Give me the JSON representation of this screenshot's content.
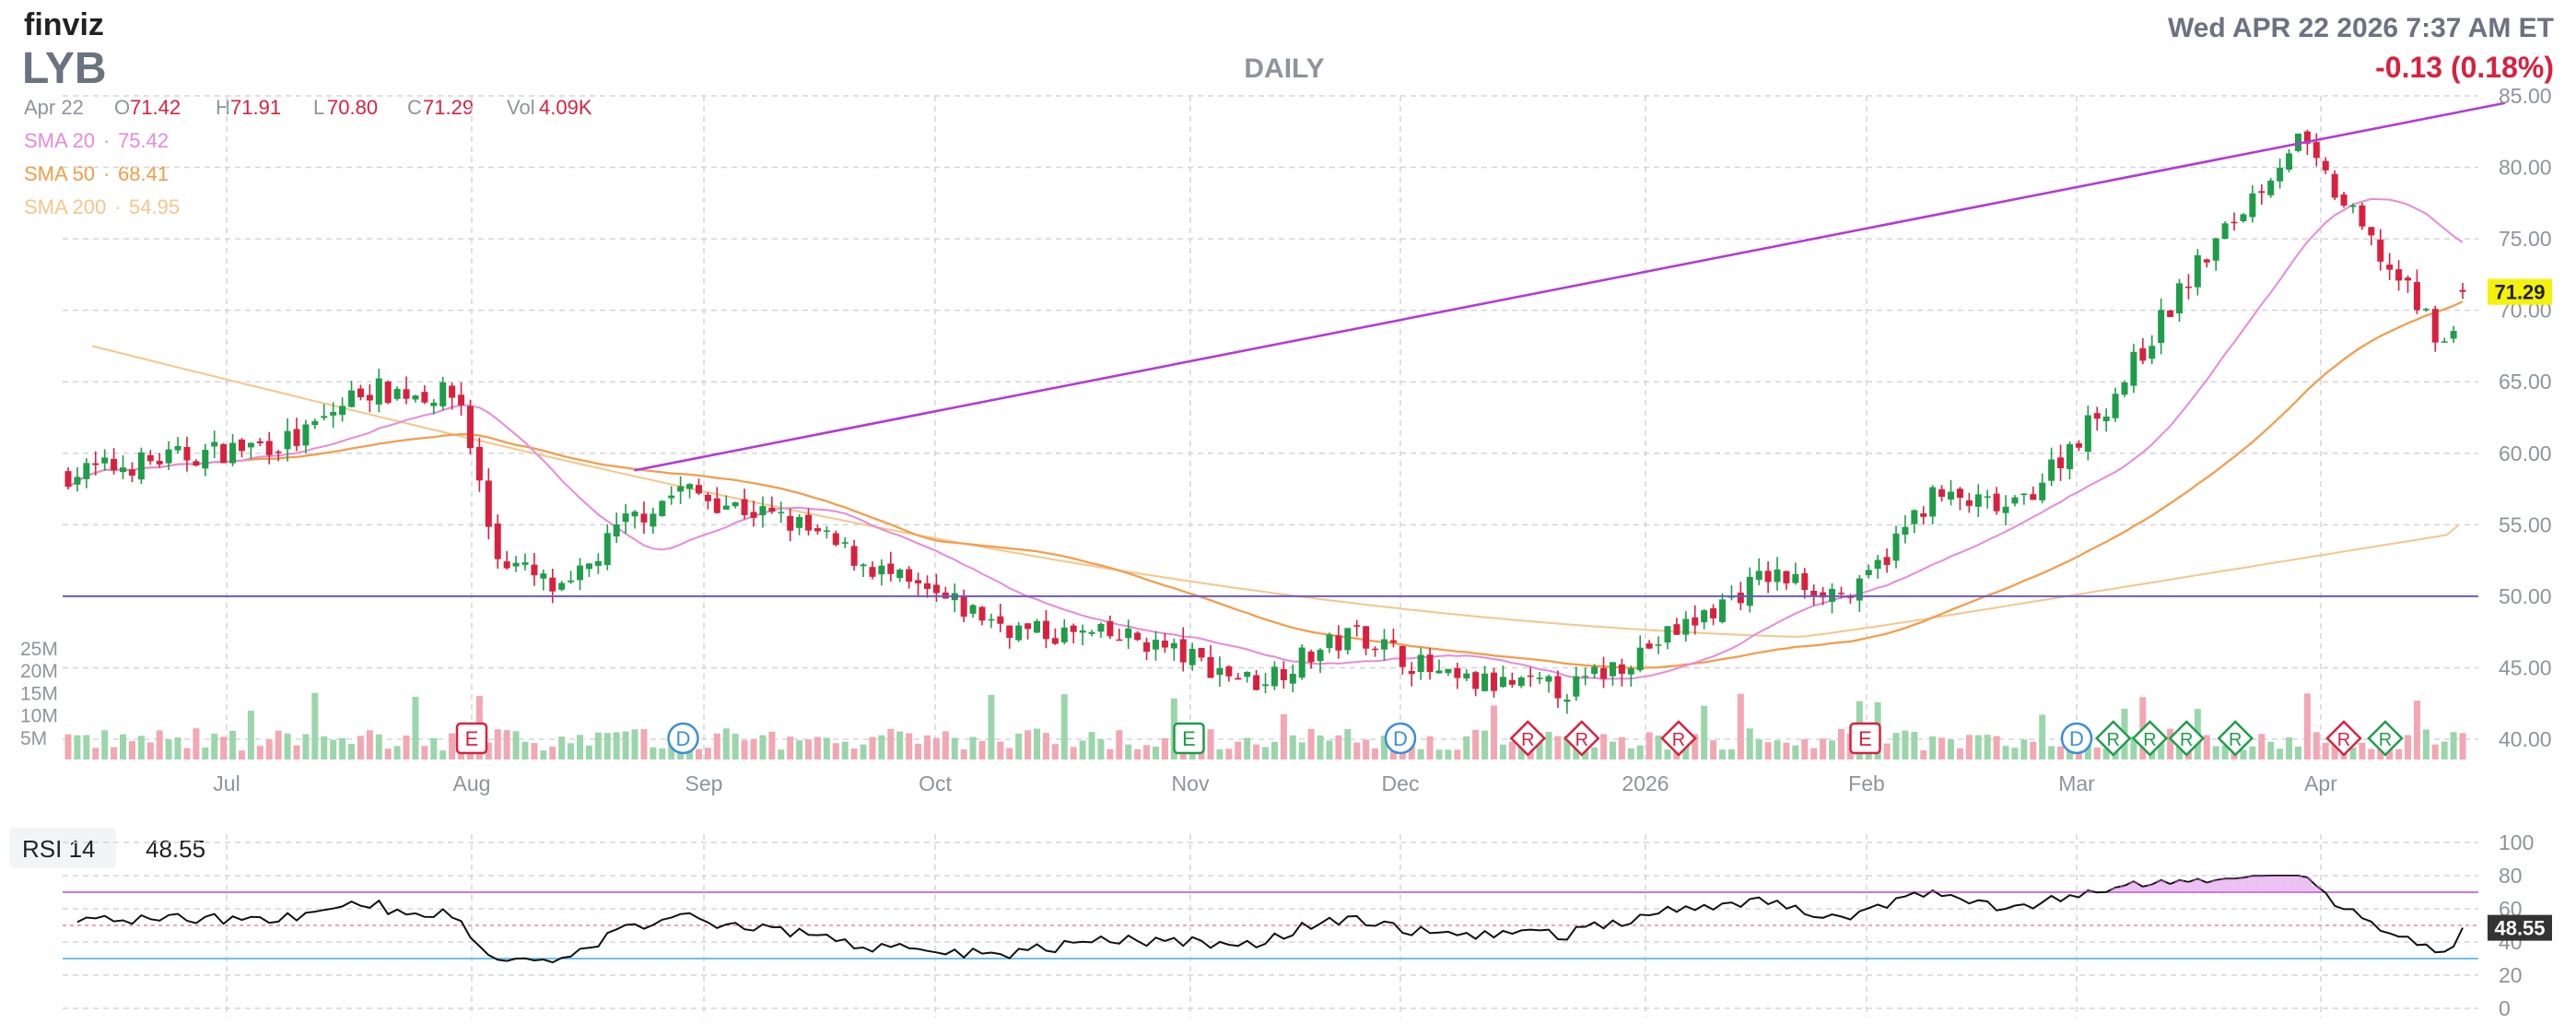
{
  "header": {
    "brand": "finviz",
    "ticker": "LYB",
    "datetime": "Wed APR 22 2026 7:37 AM ET",
    "change": "-0.13 (0.18%)",
    "period": "DAILY"
  },
  "ohlc": {
    "date": "Apr 22",
    "o_label": "O",
    "o": "71.42",
    "h_label": "H",
    "h": "71.91",
    "l_label": "L",
    "l": "70.80",
    "c_label": "C",
    "c": "71.29",
    "vol_label": "Vol",
    "vol": "4.09K"
  },
  "sma": [
    {
      "label": "SMA 20",
      "value": "75.42",
      "color": "#e88ad8"
    },
    {
      "label": "SMA 50",
      "value": "68.41",
      "color": "#f79a45"
    },
    {
      "label": "SMA 200",
      "value": "54.95",
      "color": "#f5c68a"
    }
  ],
  "colors": {
    "up": "#1f9d4a",
    "down": "#d9213f",
    "vol_up": "#9bd6ab",
    "vol_down": "#f2a7b3",
    "trend": "#b53ad6",
    "hline": "#6b58c9",
    "rsi_line": "#111111",
    "rsi_upper": "#d277e0",
    "rsi_lower": "#6ec1ee",
    "grid": "#d2d5dc",
    "axis_text": "#8f939b",
    "price_tag": "#f4f20a"
  },
  "price_axis": {
    "ticks": [
      "85.00",
      "80.00",
      "75.00",
      "70.00",
      "65.00",
      "60.00",
      "55.00",
      "50.00",
      "45.00",
      "40.00"
    ],
    "last_tag": "71.29"
  },
  "volume_axis": {
    "ticks": [
      "25M",
      "20M",
      "15M",
      "10M",
      "5M"
    ]
  },
  "x_axis": {
    "labels": [
      "Jul",
      "Aug",
      "Sep",
      "Oct",
      "Nov",
      "Dec",
      "2026",
      "Feb",
      "Mar",
      "Apr"
    ]
  },
  "events": [
    {
      "type": "E",
      "month": "Aug",
      "offset": 0
    },
    {
      "type": "D",
      "month": "Sep",
      "offset": -0.75
    },
    {
      "type": "E",
      "month": "Nov",
      "offset": -0.05
    },
    {
      "type": "D",
      "month": "Dec",
      "offset": 0
    },
    {
      "type": "R",
      "month": "Dec",
      "offset": 0.52
    },
    {
      "type": "R",
      "month": "Dec",
      "offset": 0.74
    },
    {
      "type": "R",
      "month": "2026",
      "offset": 0.15
    },
    {
      "type": "E",
      "month": "Feb",
      "offset": -0.05
    },
    {
      "type": "D",
      "month": "Mar",
      "offset": 0
    },
    {
      "type": "R",
      "month": "Mar",
      "offset": 0.15
    },
    {
      "type": "R",
      "month": "Mar",
      "offset": 0.3
    },
    {
      "type": "R",
      "month": "Mar",
      "offset": 0.45
    },
    {
      "type": "R",
      "month": "Mar",
      "offset": 0.65
    },
    {
      "type": "R",
      "month": "Apr",
      "offset": 0.1
    },
    {
      "type": "R",
      "month": "Apr",
      "offset": 0.28
    }
  ],
  "rsi": {
    "label": "RSI 14",
    "value": "48.55",
    "ticks": [
      "100",
      "80",
      "60",
      "40",
      "20",
      "0"
    ]
  },
  "chart_data": {
    "type": "candlestick",
    "symbol": "LYB",
    "price_range": [
      40,
      85
    ],
    "volume_unit": "M",
    "months": [
      "Jul",
      "Aug",
      "Sep",
      "Oct",
      "Nov",
      "Dec",
      "2026",
      "Feb",
      "Mar",
      "Apr"
    ],
    "close_anchors": [
      {
        "month": "Jun",
        "pos": 0.0,
        "close": 58.5
      },
      {
        "month": "Jul",
        "pos": 0.3,
        "close": 61.0
      },
      {
        "month": "Jul",
        "pos": 0.55,
        "close": 64.5
      },
      {
        "month": "Jul",
        "pos": 0.95,
        "close": 64.0
      },
      {
        "month": "Aug",
        "pos": 0.1,
        "close": 53.0
      },
      {
        "month": "Aug",
        "pos": 0.4,
        "close": 50.0
      },
      {
        "month": "Aug",
        "pos": 0.65,
        "close": 55.0
      },
      {
        "month": "Aug",
        "pos": 0.9,
        "close": 57.5
      },
      {
        "month": "Sep",
        "pos": 0.4,
        "close": 55.0
      },
      {
        "month": "Sep",
        "pos": 0.9,
        "close": 50.5
      },
      {
        "month": "Oct",
        "pos": 0.35,
        "close": 47.5
      },
      {
        "month": "Oct",
        "pos": 0.8,
        "close": 47.0
      },
      {
        "month": "Nov",
        "pos": 0.3,
        "close": 44.0
      },
      {
        "month": "Nov",
        "pos": 0.8,
        "close": 47.5
      },
      {
        "month": "Dec",
        "pos": 0.2,
        "close": 44.0
      },
      {
        "month": "Dec",
        "pos": 0.7,
        "close": 43.5
      },
      {
        "month": "2026",
        "pos": 0.25,
        "close": 48.5
      },
      {
        "month": "2026",
        "pos": 0.55,
        "close": 51.5
      },
      {
        "month": "2026",
        "pos": 0.95,
        "close": 50.0
      },
      {
        "month": "Feb",
        "pos": 0.3,
        "close": 57.0
      },
      {
        "month": "Feb",
        "pos": 0.7,
        "close": 56.0
      },
      {
        "month": "Mar",
        "pos": 0.15,
        "close": 64.0
      },
      {
        "month": "Mar",
        "pos": 0.45,
        "close": 72.0
      },
      {
        "month": "Mar",
        "pos": 0.9,
        "close": 82.0
      },
      {
        "month": "Apr",
        "pos": 0.25,
        "close": 74.0
      },
      {
        "month": "Apr",
        "pos": 0.55,
        "close": 67.5
      },
      {
        "month": "Apr",
        "pos": 0.75,
        "close": 71.29
      }
    ],
    "volume_range_M": [
      0,
      25
    ],
    "sma20_last": 75.42,
    "sma50_last": 68.41,
    "sma200_last": 54.95,
    "trendline": [
      {
        "month": "Aug",
        "pos": 0.7,
        "price": 58.8
      },
      {
        "month": "Apr",
        "pos": 0.8,
        "price": 84.5
      }
    ],
    "horizontal_line": 50.0,
    "rsi_levels": {
      "upper": 70,
      "lower": 30,
      "last": 48.55
    },
    "rsi_range": [
      0,
      100
    ]
  }
}
